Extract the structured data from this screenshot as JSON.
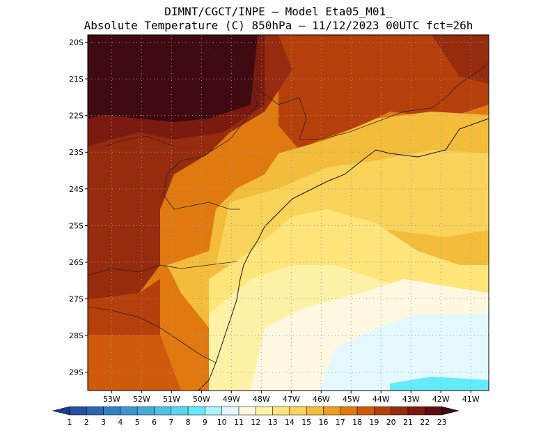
{
  "title_line1": "DIMNT/CGCT/INPE  –   Model Eta05_M01_",
  "title_line2": "Absolute Temperature (C) 850hPa  –   11/12/2023 00UTC fct=26h",
  "map": {
    "lat_labels": [
      "20S",
      "21S",
      "22S",
      "23S",
      "24S",
      "25S",
      "26S",
      "27S",
      "28S",
      "29S"
    ],
    "lon_labels": [
      "53W",
      "52W",
      "51W",
      "50W",
      "49W",
      "48W",
      "47W",
      "46W",
      "45W",
      "44W",
      "43W",
      "42W",
      "41W"
    ],
    "lat_range": [
      -29.5,
      -19.8
    ],
    "lon_range": [
      -53.8,
      -40.4
    ]
  },
  "colorbar": {
    "labels": [
      "1",
      "2",
      "3",
      "4",
      "5",
      "6",
      "7",
      "8",
      "9",
      "10",
      "11",
      "12",
      "13",
      "14",
      "15",
      "16",
      "17",
      "18",
      "19",
      "20",
      "21",
      "22",
      "23"
    ],
    "colors": [
      "#1b3a8c",
      "#23519f",
      "#2a67b1",
      "#3181c2",
      "#3a98cf",
      "#45acd9",
      "#4fc1e4",
      "#58d6ef",
      "#63eafb",
      "#aef2ff",
      "#e3f8ff",
      "#fff8e1",
      "#fff2a6",
      "#ffe57a",
      "#f9d35a",
      "#f3bc3b",
      "#eb9f1b",
      "#e07a10",
      "#cf5a0c",
      "#b5400c",
      "#962b0e",
      "#7a1a10",
      "#5c0d14",
      "#3f0a10"
    ]
  }
}
